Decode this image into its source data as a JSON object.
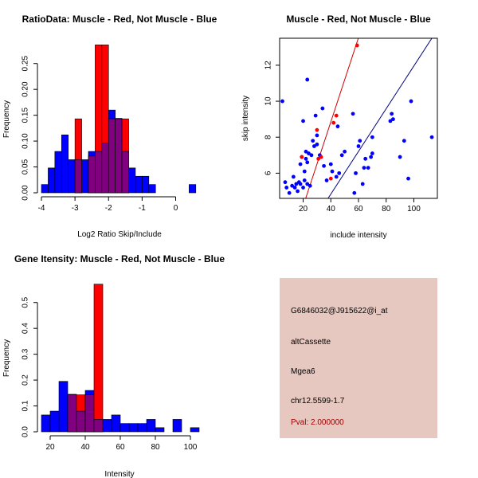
{
  "chart_data": [
    {
      "id": "ratio",
      "type": "histogram",
      "title": "RatioData: Muscle - Red, Not Muscle - Blue",
      "xlabel": "Log2 Ratio Skip/Include",
      "ylabel": "Frequency",
      "xlim": [
        -4.0,
        0.7
      ],
      "ylim": [
        0,
        0.285
      ],
      "xticks": [
        -4,
        -3,
        -2,
        -1,
        0
      ],
      "yticks": [
        0.0,
        0.05,
        0.1,
        0.15,
        0.2,
        0.25
      ],
      "ytick_labels": [
        "0.00",
        "0.05",
        "0.10",
        "0.15",
        "0.20",
        "0.25"
      ],
      "blue_series": {
        "name": "Not Muscle",
        "bins": [
          [
            -4.0,
            -3.8,
            0.016
          ],
          [
            -3.8,
            -3.6,
            0.048
          ],
          [
            -3.6,
            -3.4,
            0.08
          ],
          [
            -3.4,
            -3.2,
            0.112
          ],
          [
            -3.2,
            -3.0,
            0.064
          ],
          [
            -3.0,
            -2.8,
            0.064
          ],
          [
            -2.8,
            -2.6,
            0.064
          ],
          [
            -2.6,
            -2.4,
            0.08
          ],
          [
            -2.4,
            -2.2,
            0.08
          ],
          [
            -2.2,
            -2.0,
            0.096
          ],
          [
            -2.0,
            -1.8,
            0.16
          ],
          [
            -1.8,
            -1.6,
            0.144
          ],
          [
            -1.6,
            -1.4,
            0.08
          ],
          [
            -1.4,
            -1.2,
            0.048
          ],
          [
            -1.2,
            -1.0,
            0.032
          ],
          [
            -1.0,
            -0.8,
            0.032
          ],
          [
            -0.8,
            -0.6,
            0.016
          ],
          [
            0.4,
            0.6,
            0.016
          ]
        ]
      },
      "red_series": {
        "name": "Muscle",
        "bins": [
          [
            -3.0,
            -2.8,
            0.143
          ],
          [
            -2.6,
            -2.4,
            0.071
          ],
          [
            -2.4,
            -2.2,
            0.286
          ],
          [
            -2.2,
            -2.0,
            0.286
          ],
          [
            -2.0,
            -1.8,
            0.143
          ],
          [
            -1.8,
            -1.6,
            0.143
          ],
          [
            -1.6,
            -1.4,
            0.143
          ]
        ]
      }
    },
    {
      "id": "scatter",
      "type": "scatter",
      "title": "Muscle - Red, Not Muscle - Blue",
      "xlabel": "include intensity",
      "ylabel": "skip intensity",
      "xlim": [
        3,
        117
      ],
      "ylim": [
        4.6,
        13.5
      ],
      "xticks": [
        20,
        40,
        60,
        80,
        100
      ],
      "yticks": [
        6,
        8,
        10,
        12
      ],
      "blue_points": [
        [
          5,
          10.0
        ],
        [
          7,
          5.5
        ],
        [
          8,
          5.2
        ],
        [
          10,
          4.9
        ],
        [
          12,
          5.3
        ],
        [
          13,
          5.8
        ],
        [
          14,
          5.2
        ],
        [
          15,
          5.4
        ],
        [
          16,
          5.0
        ],
        [
          17,
          5.5
        ],
        [
          18,
          5.4
        ],
        [
          18,
          6.5
        ],
        [
          19,
          6.9
        ],
        [
          20,
          8.9
        ],
        [
          20,
          5.2
        ],
        [
          21,
          6.1
        ],
        [
          21,
          5.6
        ],
        [
          22,
          6.8
        ],
        [
          22,
          7.2
        ],
        [
          23,
          11.2
        ],
        [
          23,
          6.6
        ],
        [
          23,
          5.4
        ],
        [
          24,
          7.1
        ],
        [
          25,
          5.3
        ],
        [
          26,
          7.0
        ],
        [
          27,
          7.8
        ],
        [
          28,
          7.5
        ],
        [
          29,
          9.2
        ],
        [
          30,
          8.1
        ],
        [
          30,
          7.6
        ],
        [
          32,
          7.0
        ],
        [
          34,
          9.6
        ],
        [
          35,
          6.4
        ],
        [
          37,
          5.6
        ],
        [
          40,
          6.5
        ],
        [
          41,
          6.1
        ],
        [
          44,
          5.8
        ],
        [
          45,
          8.6
        ],
        [
          46,
          6.0
        ],
        [
          48,
          7.0
        ],
        [
          50,
          7.2
        ],
        [
          56,
          9.3
        ],
        [
          57,
          4.9
        ],
        [
          58,
          6.0
        ],
        [
          60,
          7.5
        ],
        [
          61,
          7.8
        ],
        [
          63,
          5.4
        ],
        [
          64,
          6.3
        ],
        [
          65,
          6.8
        ],
        [
          67,
          6.3
        ],
        [
          69,
          6.9
        ],
        [
          70,
          7.1
        ],
        [
          70,
          8.0
        ],
        [
          83,
          8.9
        ],
        [
          84,
          9.3
        ],
        [
          85,
          9.0
        ],
        [
          90,
          6.9
        ],
        [
          93,
          7.8
        ],
        [
          96,
          5.7
        ],
        [
          98,
          10.0
        ],
        [
          113,
          8.0
        ]
      ],
      "red_points": [
        [
          19,
          6.9
        ],
        [
          30,
          8.4
        ],
        [
          31,
          6.8
        ],
        [
          33,
          6.9
        ],
        [
          40,
          5.7
        ],
        [
          42,
          8.8
        ],
        [
          44,
          9.2
        ],
        [
          59,
          13.1
        ]
      ],
      "red_line": [
        [
          15,
          3.0
        ],
        [
          62,
          14.0
        ]
      ],
      "blue_line": [
        [
          38,
          4.6
        ],
        [
          113,
          13.5
        ]
      ]
    },
    {
      "id": "intensity",
      "type": "histogram",
      "title": "Gene Itensity: Muscle - Red, Not Muscle - Blue",
      "xlabel": "Intensity",
      "ylabel": "Frequency",
      "xlim": [
        15,
        105
      ],
      "ylim": [
        0,
        0.57
      ],
      "xticks": [
        20,
        40,
        60,
        80,
        100
      ],
      "yticks": [
        0.0,
        0.1,
        0.2,
        0.3,
        0.4,
        0.5
      ],
      "ytick_labels": [
        "0.0",
        "0.1",
        "0.2",
        "0.3",
        "0.4",
        "0.5"
      ],
      "blue_series": {
        "name": "Not Muscle",
        "bins": [
          [
            15,
            20,
            0.065
          ],
          [
            20,
            25,
            0.08
          ],
          [
            25,
            30,
            0.195
          ],
          [
            30,
            35,
            0.145
          ],
          [
            35,
            40,
            0.08
          ],
          [
            40,
            45,
            0.16
          ],
          [
            45,
            50,
            0.048
          ],
          [
            50,
            55,
            0.048
          ],
          [
            55,
            60,
            0.065
          ],
          [
            60,
            65,
            0.032
          ],
          [
            65,
            70,
            0.032
          ],
          [
            70,
            75,
            0.032
          ],
          [
            75,
            80,
            0.048
          ],
          [
            80,
            85,
            0.016
          ],
          [
            90,
            95,
            0.048
          ],
          [
            100,
            105,
            0.016
          ]
        ]
      },
      "red_series": {
        "name": "Muscle",
        "bins": [
          [
            30,
            35,
            0.143
          ],
          [
            35,
            40,
            0.143
          ],
          [
            40,
            45,
            0.143
          ],
          [
            45,
            50,
            0.571
          ]
        ]
      }
    }
  ],
  "info": {
    "probe_id": "G6846032@J915622@i_at",
    "event_type": "altCassette",
    "gene": "Mgea6",
    "location": "chr12.5599-1.7",
    "pval": "Pval: 2.000000"
  },
  "colors": {
    "red": "#ff0000",
    "blue": "#0000ff",
    "overlap": "#800080",
    "red_line": "#cc0000",
    "blue_line": "#000080",
    "panel_bg": "#e6c8c0",
    "pval": "#a00000"
  }
}
